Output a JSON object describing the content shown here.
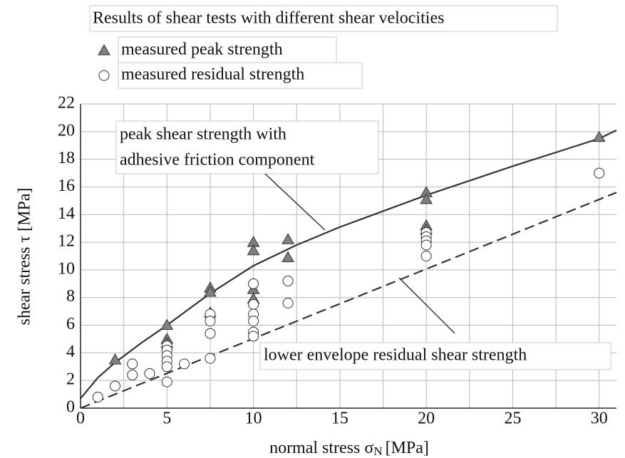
{
  "chart_data": {
    "type": "scatter",
    "title": "Results of shear tests with different shear velocities",
    "xlabel": {
      "text": "normal stress σ",
      "subscript": "N",
      "unit": "[MPa]"
    },
    "ylabel": "shear stress τ [MPa]",
    "xlim": [
      0,
      31
    ],
    "ylim": [
      0,
      22
    ],
    "xticks": [
      0,
      5,
      10,
      15,
      20,
      25,
      30
    ],
    "yticks": [
      0,
      2,
      4,
      6,
      8,
      10,
      12,
      14,
      16,
      18,
      20,
      22
    ],
    "xminor": [
      2.5,
      7.5,
      12.5,
      17.5,
      22.5,
      27.5
    ],
    "grid": true,
    "series": [
      {
        "name": "measured peak strength",
        "marker": "triangle",
        "color": "#808080",
        "x": [
          2,
          5,
          5,
          5,
          7.5,
          7.5,
          7.5,
          10,
          10,
          10,
          10,
          12,
          12,
          20,
          20,
          20,
          20,
          30
        ],
        "values": [
          3.5,
          6,
          5,
          4.7,
          8.7,
          8.4,
          6.9,
          12,
          11.4,
          8.6,
          7.9,
          12.2,
          10.9,
          15.6,
          15.1,
          13.2,
          12.9,
          19.6
        ]
      },
      {
        "name": "measured residual strength",
        "marker": "circle",
        "color": "#ffffff",
        "x": [
          1,
          2,
          3,
          3,
          4,
          5,
          5,
          5,
          5,
          5,
          5,
          6,
          7.5,
          7.5,
          7.5,
          7.5,
          10,
          10,
          10,
          10,
          10,
          10,
          12,
          12,
          20,
          20,
          20,
          20,
          20,
          30
        ],
        "values": [
          0.8,
          1.6,
          3.2,
          2.4,
          2.5,
          4.5,
          4.2,
          3.8,
          3.4,
          3.0,
          1.9,
          3.2,
          6.8,
          6.3,
          5.4,
          3.6,
          9,
          7.5,
          6.8,
          6.3,
          5.5,
          5.2,
          9.2,
          7.6,
          12.7,
          12.4,
          12.1,
          11.8,
          11,
          17
        ]
      }
    ],
    "lines": [
      {
        "name": "peak shear strength with adhesive friction component",
        "style": "solid",
        "color": "#333333",
        "x": [
          0,
          1,
          2,
          3.5,
          5,
          7.5,
          10,
          12.5,
          15,
          20,
          25,
          30,
          31
        ],
        "values": [
          0.7,
          2.2,
          3.3,
          4.7,
          6.0,
          8.3,
          10.3,
          11.8,
          13.1,
          15.4,
          17.5,
          19.5,
          20.1
        ]
      },
      {
        "name": "lower envelope residual shear strength",
        "style": "dashed",
        "color": "#333333",
        "x": [
          0,
          31
        ],
        "values": [
          0,
          15.6
        ]
      }
    ],
    "annotations": [
      {
        "lines": [
          "peak shear strength with",
          "adhesive friction component"
        ]
      },
      {
        "lines": [
          "lower envelope residual shear strength"
        ]
      }
    ]
  }
}
